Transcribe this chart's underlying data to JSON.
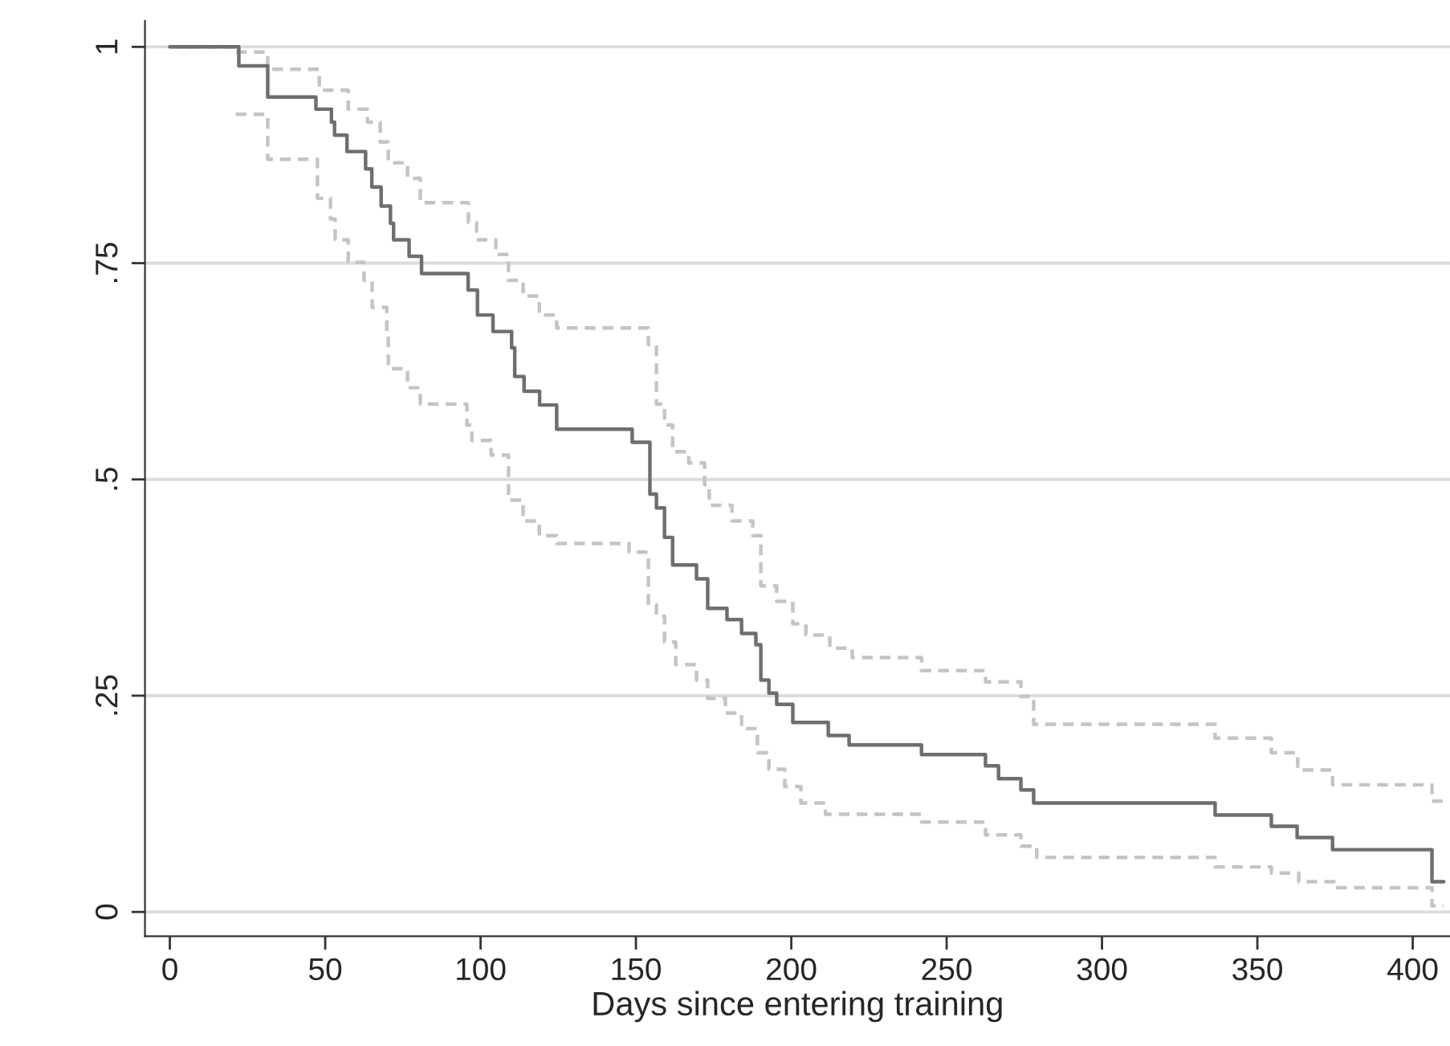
{
  "chart_data": {
    "type": "step",
    "xlabel": "Days since entering training",
    "xlim": [
      -8,
      412
    ],
    "xticks": [
      0,
      50,
      100,
      150,
      200,
      250,
      300,
      350,
      400
    ],
    "ylim": [
      -0.028,
      1.03
    ],
    "yticks": [
      0,
      {
        "value": 0.25,
        "label": ".25"
      },
      {
        "value": 0.5,
        "label": ".5"
      },
      {
        "value": 0.75,
        "label": ".75"
      },
      1
    ],
    "grid": "y",
    "marker": "none",
    "series": [
      {
        "color": "#c4c4c4",
        "line_style": "dashed",
        "x": [
          0,
          21.2,
          31.5,
          48.1,
          57.4,
          63.6,
          67.7,
          70.3,
          76.5,
          80.6,
          96.1,
          98.7,
          104.9,
          109,
          113.7,
          118.9,
          124.5,
          154,
          156.6,
          159.2,
          161.8,
          167,
          172.1,
          173.6,
          180.9,
          187.6,
          190.2,
          195.3,
          200.5,
          204.7,
          212.4,
          219.6,
          241.9,
          262.5,
          273.9,
          278,
          336.4,
          354.5,
          363,
          374.2,
          406.2,
          410
        ],
        "values": [
          1,
          0.994,
          0.974,
          0.95,
          0.928,
          0.913,
          0.89,
          0.866,
          0.848,
          0.82,
          0.797,
          0.777,
          0.76,
          0.73,
          0.712,
          0.69,
          0.675,
          0.656,
          0.587,
          0.563,
          0.532,
          0.519,
          0.494,
          0.47,
          0.452,
          0.435,
          0.377,
          0.359,
          0.333,
          0.32,
          0.305,
          0.294,
          0.279,
          0.266,
          0.249,
          0.217,
          0.201,
          0.184,
          0.164,
          0.147,
          0.128,
          0.128
        ]
      },
      {
        "color": "#c4c4c4",
        "line_style": "dashed",
        "x": [
          21.2,
          31.5,
          47.5,
          51.7,
          53.2,
          57.4,
          62.5,
          65.1,
          69.8,
          70.3,
          76.5,
          80.6,
          95.6,
          97.2,
          103.4,
          109,
          113.7,
          118.9,
          124.5,
          147.8,
          154,
          156.6,
          159.2,
          162.8,
          169.5,
          173.1,
          178.8,
          184,
          189.1,
          192.8,
          197.9,
          203.1,
          211,
          241.9,
          262.5,
          273.9,
          279,
          336.4,
          354.5,
          363.3,
          374.7,
          406.2,
          410
        ],
        "values": [
          0.922,
          0.87,
          0.825,
          0.801,
          0.777,
          0.751,
          0.73,
          0.699,
          0.667,
          0.628,
          0.606,
          0.587,
          0.563,
          0.545,
          0.528,
          0.476,
          0.452,
          0.435,
          0.426,
          0.416,
          0.355,
          0.342,
          0.312,
          0.286,
          0.268,
          0.247,
          0.23,
          0.212,
          0.184,
          0.165,
          0.145,
          0.126,
          0.113,
          0.104,
          0.089,
          0.076,
          0.063,
          0.052,
          0.045,
          0.035,
          0.028,
          0.007,
          0.007
        ]
      },
      {
        "color": "#6e6e6e",
        "line_style": "solid",
        "x": [
          0,
          22.2,
          31.5,
          47,
          52,
          53,
          57,
          63,
          65,
          68,
          71,
          72,
          77,
          81,
          96,
          99,
          104,
          110,
          111,
          114,
          119,
          124.5,
          148.8,
          154.5,
          156.6,
          159.2,
          161.8,
          169.5,
          173.1,
          179.3,
          184,
          188.6,
          190.2,
          192.8,
          195.3,
          200.5,
          211.9,
          218.6,
          241.9,
          262.5,
          266.7,
          273.9,
          278,
          336.4,
          354.5,
          362.8,
          374.2,
          406.2,
          410
        ],
        "values": [
          1,
          0.978,
          0.942,
          0.928,
          0.913,
          0.898,
          0.879,
          0.859,
          0.838,
          0.816,
          0.796,
          0.777,
          0.758,
          0.738,
          0.719,
          0.69,
          0.671,
          0.652,
          0.619,
          0.602,
          0.586,
          0.558,
          0.543,
          0.483,
          0.467,
          0.433,
          0.401,
          0.385,
          0.351,
          0.338,
          0.322,
          0.309,
          0.268,
          0.253,
          0.24,
          0.219,
          0.204,
          0.193,
          0.182,
          0.169,
          0.154,
          0.141,
          0.126,
          0.112,
          0.099,
          0.086,
          0.072,
          0.035,
          0.035
        ]
      }
    ]
  }
}
